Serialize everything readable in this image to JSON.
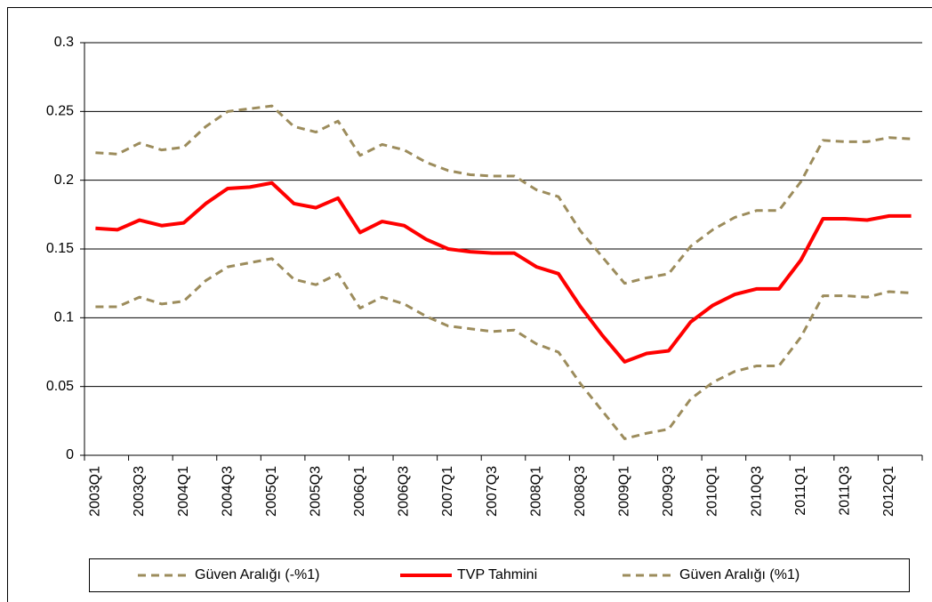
{
  "chart_data": {
    "type": "line",
    "categories": [
      "2003Q1",
      null,
      "2003Q3",
      null,
      "2004Q1",
      null,
      "2004Q3",
      null,
      "2005Q1",
      null,
      "2005Q3",
      null,
      "2006Q1",
      null,
      "2006Q3",
      null,
      "2007Q1",
      null,
      "2007Q3",
      null,
      "2008Q1",
      null,
      "2008Q3",
      null,
      "2009Q1",
      null,
      "2009Q3",
      null,
      "2010Q1",
      null,
      "2010Q3",
      null,
      "2011Q1",
      null,
      "2011Q3",
      null,
      "2012Q1",
      null
    ],
    "series": [
      {
        "name": "Güven Aralığı (-%1)",
        "color": "#9c8c5c",
        "dashed": true,
        "values": [
          0.108,
          0.108,
          0.115,
          0.11,
          0.112,
          0.127,
          0.137,
          0.14,
          0.143,
          0.128,
          0.124,
          0.132,
          0.107,
          0.115,
          0.11,
          0.101,
          0.094,
          0.092,
          0.09,
          0.091,
          0.081,
          0.075,
          0.052,
          0.032,
          0.012,
          0.016,
          0.019,
          0.041,
          0.053,
          0.061,
          0.065,
          0.065,
          0.086,
          0.116,
          0.116,
          0.115,
          0.119,
          0.118
        ]
      },
      {
        "name": "TVP Tahmini",
        "color": "#ff0000",
        "dashed": false,
        "values": [
          0.165,
          0.164,
          0.171,
          0.167,
          0.169,
          0.183,
          0.194,
          0.195,
          0.198,
          0.183,
          0.18,
          0.187,
          0.162,
          0.17,
          0.167,
          0.157,
          0.15,
          0.148,
          0.147,
          0.147,
          0.137,
          0.132,
          0.108,
          0.087,
          0.068,
          0.074,
          0.076,
          0.097,
          0.109,
          0.117,
          0.121,
          0.121,
          0.142,
          0.172,
          0.172,
          0.171,
          0.174,
          0.174
        ]
      },
      {
        "name": "Güven Aralığı (%1)",
        "color": "#9c8c5c",
        "dashed": true,
        "values": [
          0.22,
          0.219,
          0.227,
          0.222,
          0.224,
          0.239,
          0.25,
          0.252,
          0.254,
          0.239,
          0.235,
          0.243,
          0.218,
          0.226,
          0.222,
          0.213,
          0.207,
          0.204,
          0.203,
          0.203,
          0.193,
          0.188,
          0.163,
          0.144,
          0.125,
          0.129,
          0.132,
          0.152,
          0.164,
          0.173,
          0.178,
          0.178,
          0.199,
          0.229,
          0.228,
          0.228,
          0.231,
          0.23
        ]
      }
    ],
    "ylim": [
      0,
      0.3
    ],
    "yticks": [
      0,
      0.05,
      0.1,
      0.15,
      0.2,
      0.25,
      0.3
    ],
    "grid": true,
    "legend": "bottom"
  }
}
